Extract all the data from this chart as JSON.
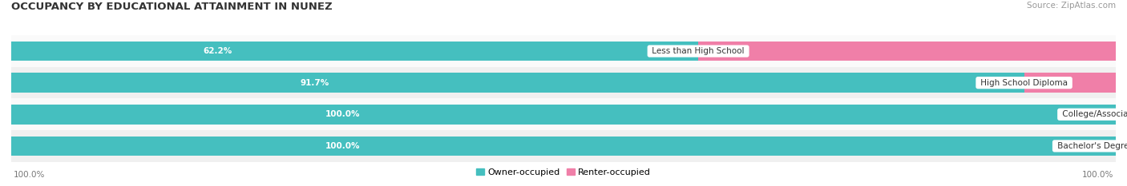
{
  "title": "OCCUPANCY BY EDUCATIONAL ATTAINMENT IN NUNEZ",
  "source": "Source: ZipAtlas.com",
  "categories": [
    "Less than High School",
    "High School Diploma",
    "College/Associate Degree",
    "Bachelor's Degree or higher"
  ],
  "owner_values": [
    62.2,
    91.7,
    100.0,
    100.0
  ],
  "renter_values": [
    37.8,
    8.3,
    0.0,
    0.0
  ],
  "owner_color": "#45BFBF",
  "renter_color": "#F07FA8",
  "row_bg_colors": [
    "#F0F0F0",
    "#FAFAFA",
    "#F0F0F0",
    "#FAFAFA"
  ],
  "title_fontsize": 9.5,
  "source_fontsize": 7.5,
  "bar_value_fontsize": 7.5,
  "cat_label_fontsize": 7.5,
  "legend_fontsize": 8,
  "axis_label_fontsize": 7.5,
  "left_label": "100.0%",
  "right_label": "100.0%",
  "bar_height": 0.62,
  "figsize": [
    14.06,
    2.33
  ],
  "dpi": 100
}
